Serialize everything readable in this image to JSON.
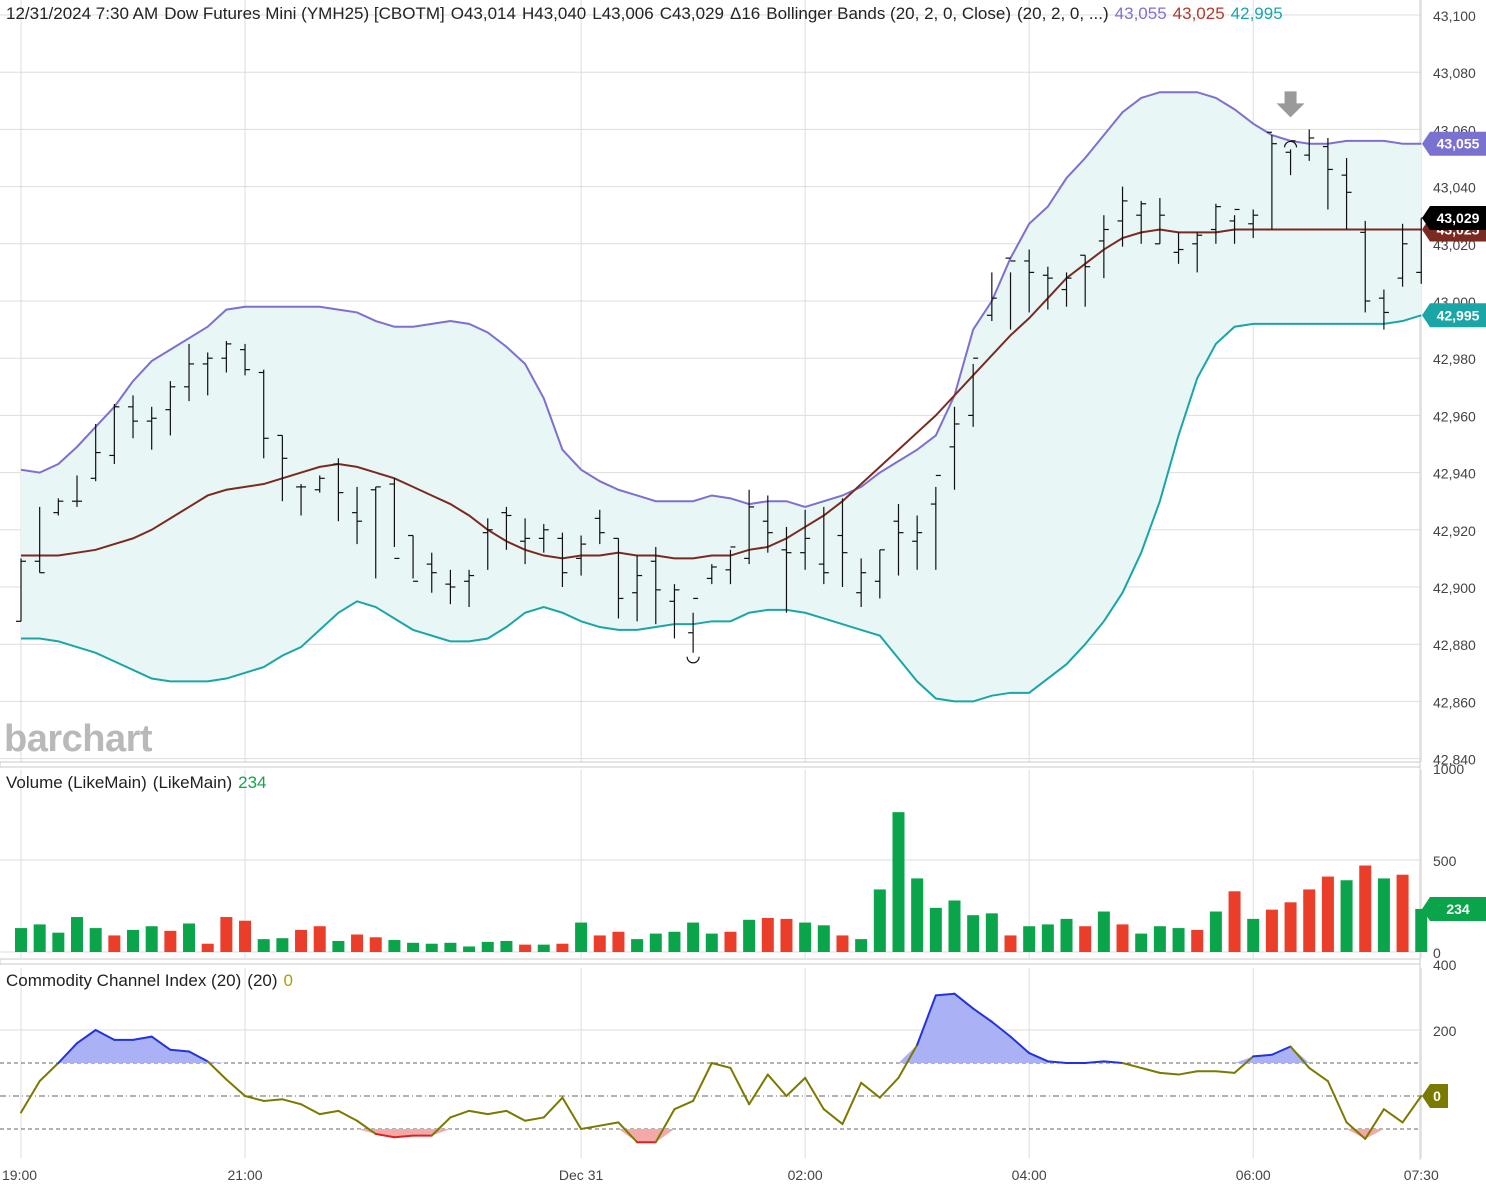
{
  "header": {
    "datetime": "12/31/2024 7:30 AM",
    "symbol": "Dow Futures Mini (YMH25) [CBOTM]",
    "open": "O43,014",
    "high": "H43,040",
    "low": "L43,006",
    "close": "C43,029",
    "change": "Δ16",
    "study": "Bollinger Bands (20, 2, 0, Close)",
    "study_params": "(20, 2, 0, ...)",
    "upper_value": "43,055",
    "middle_value": "43,025",
    "lower_value": "42,995"
  },
  "volume_header": {
    "label": "Volume (LikeMain)",
    "params": "(LikeMain)",
    "value": "234"
  },
  "cci_header": {
    "label": "Commodity Channel Index (20)",
    "params": "(20)",
    "value": "0"
  },
  "watermark": "barchart",
  "colors": {
    "upper": "#7b71d0",
    "middle": "#7a2a20",
    "lower": "#1aa6a6",
    "band_fill": "#e8f6f6",
    "vol_up": "#0aa54a",
    "vol_down": "#ea3e2a",
    "cci_line": "#7a7a00",
    "cci_pos": "#2233dd",
    "cci_neg": "#e02020",
    "last_price": "#000000",
    "cci_badge": "#7a7a00"
  },
  "chart_data": [
    {
      "type": "ohlc",
      "title": "Dow Futures Mini (YMH25) [CBOTM]",
      "y_ticks": [
        42840,
        42860,
        42880,
        42900,
        42920,
        42940,
        42960,
        42980,
        43000,
        43020,
        43040,
        43060,
        43080,
        43100
      ],
      "y_tick_labels": [
        "42,840",
        "42,860",
        "42,880",
        "42,900",
        "42,920",
        "42,940",
        "42,960",
        "42,980",
        "43,000",
        "43,020",
        "43,040",
        "43,060",
        "43,080",
        "43,100"
      ],
      "ylim": [
        42836,
        43105
      ],
      "x_ticks": [
        {
          "bar": 0,
          "label": "19:00"
        },
        {
          "bar": 12,
          "label": "21:00"
        },
        {
          "bar": 30,
          "label": "Dec 31"
        },
        {
          "bar": 42,
          "label": "02:00"
        },
        {
          "bar": 54,
          "label": "04:00"
        },
        {
          "bar": 66,
          "label": "06:00"
        },
        {
          "bar": 75,
          "label": "07:30"
        }
      ],
      "bars": [
        [
          42888,
          42910,
          42888,
          42909
        ],
        [
          42909,
          42928,
          42905,
          42905
        ],
        [
          42926,
          42931,
          42925,
          42930
        ],
        [
          42930,
          42939,
          42928,
          42930
        ],
        [
          42938,
          42957,
          42937,
          42947
        ],
        [
          42946,
          42964,
          42943,
          42963
        ],
        [
          42963,
          42967,
          42952,
          42958
        ],
        [
          42958,
          42963,
          42948,
          42959
        ],
        [
          42962,
          42972,
          42953,
          42970
        ],
        [
          42970,
          42985,
          42965,
          42978
        ],
        [
          42978,
          42982,
          42967,
          42980
        ],
        [
          42980,
          42986,
          42975,
          42985
        ],
        [
          42983,
          42985,
          42974,
          42976
        ],
        [
          42975,
          42976,
          42945,
          42952
        ],
        [
          42953,
          42953,
          42930,
          42945
        ],
        [
          42935,
          42936,
          42925,
          42935
        ],
        [
          42934,
          42939,
          42933,
          42938
        ],
        [
          42943,
          42945,
          42923,
          42933
        ],
        [
          42926,
          42935,
          42915,
          42923
        ],
        [
          42934,
          42935,
          42903,
          42935
        ],
        [
          42936,
          42938,
          42914,
          42910
        ],
        [
          42918,
          42918,
          42903,
          42902
        ],
        [
          42908,
          42912,
          42898,
          42905
        ],
        [
          42901,
          42906,
          42894,
          42900
        ],
        [
          42902,
          42906,
          42893,
          42904
        ],
        [
          42919,
          42924,
          42906,
          42920
        ],
        [
          42926,
          42928,
          42913,
          42925
        ],
        [
          42916,
          42924,
          42908,
          42917
        ],
        [
          42917,
          42922,
          42912,
          42920
        ],
        [
          42917,
          42919,
          42900,
          42905
        ],
        [
          42910,
          42918,
          42904,
          42915
        ],
        [
          42924,
          42927,
          42915,
          42919
        ],
        [
          42917,
          42917,
          42889,
          42896
        ],
        [
          42898,
          42911,
          42888,
          42904
        ],
        [
          42909,
          42914,
          42887,
          42899
        ],
        [
          42895,
          42901,
          42882,
          42899
        ],
        [
          42884,
          42891,
          42877,
          42896
        ],
        [
          42903,
          42908,
          42901,
          42907
        ],
        [
          42906,
          42913,
          42901,
          42914
        ],
        [
          42910,
          42934,
          42908,
          42928
        ],
        [
          42923,
          42932,
          42912,
          42919
        ],
        [
          42913,
          42921,
          42891,
          42912
        ],
        [
          42912,
          42927,
          42906,
          42917
        ],
        [
          42908,
          42928,
          42901,
          42905
        ],
        [
          42918,
          42931,
          42900,
          42912
        ],
        [
          42898,
          42910,
          42893,
          42905
        ],
        [
          42902,
          42913,
          42896,
          42913
        ],
        [
          42923,
          42929,
          42904,
          42919
        ],
        [
          42916,
          42925,
          42906,
          42919
        ],
        [
          42929,
          42935,
          42906,
          42939
        ],
        [
          42949,
          42963,
          42934,
          42957
        ],
        [
          42960,
          42978,
          42956,
          42980
        ],
        [
          42995,
          43010,
          42993,
          43001
        ],
        [
          43015,
          43010,
          42990,
          43014
        ],
        [
          43014,
          43018,
          42996,
          43010
        ],
        [
          43009,
          43012,
          42997,
          43008
        ],
        [
          43004,
          43010,
          42998,
          43008
        ],
        [
          43016,
          43016,
          42998,
          43012
        ],
        [
          43021,
          43030,
          43008,
          43025
        ],
        [
          43028,
          43040,
          43019,
          43035
        ],
        [
          43030,
          43035,
          43020,
          43034
        ],
        [
          43020,
          43036,
          43020,
          43030
        ],
        [
          43017,
          43024,
          43013,
          43018
        ],
        [
          43020,
          43024,
          43010,
          43023
        ],
        [
          43025,
          43034,
          43020,
          43033
        ],
        [
          43028,
          43030,
          43020,
          43032
        ],
        [
          43027,
          43032,
          43022,
          43030
        ],
        [
          43059,
          43058,
          43025,
          43055
        ],
        [
          43052,
          43053,
          43044,
          43056
        ],
        [
          43051,
          43060,
          43049,
          43057
        ],
        [
          43054,
          43057,
          43032,
          43046
        ],
        [
          43044,
          43050,
          43025,
          43038
        ],
        [
          43024,
          43028,
          42996,
          43000
        ],
        [
          43001,
          43004,
          42990,
          42996
        ],
        [
          43008,
          43027,
          43005,
          43020
        ],
        [
          43010,
          43029,
          43006,
          43029
        ]
      ],
      "bollinger_upper": [
        42941,
        42940,
        42943,
        42949,
        42956,
        42963,
        42972,
        42979,
        42983,
        42987,
        42991,
        42997,
        42998,
        42998,
        42998,
        42998,
        42998,
        42997,
        42996,
        42993,
        42991,
        42991,
        42992,
        42993,
        42992,
        42989,
        42984,
        42978,
        42966,
        42948,
        42941,
        42937,
        42934,
        42932,
        42930,
        42930,
        42930,
        42932,
        42931,
        42929,
        42930,
        42930,
        42928,
        42930,
        42932,
        42935,
        42940,
        42944,
        42948,
        42953,
        42967,
        42990,
        43000,
        43015,
        43027,
        43033,
        43043,
        43050,
        43058,
        43066,
        43071,
        43073,
        43073,
        43073,
        43071,
        43067,
        43062,
        43058,
        43056,
        43055,
        43055,
        43056,
        43056,
        43056,
        43055,
        43055
      ],
      "bollinger_middle": [
        42911,
        42911,
        42911,
        42912,
        42913,
        42915,
        42917,
        42920,
        42924,
        42928,
        42932,
        42934,
        42935,
        42936,
        42938,
        42940,
        42942,
        42943,
        42942,
        42940,
        42938,
        42935,
        42932,
        42929,
        42925,
        42920,
        42916,
        42913,
        42911,
        42910,
        42911,
        42911,
        42912,
        42911,
        42911,
        42910,
        42910,
        42911,
        42911,
        42913,
        42914,
        42917,
        42921,
        42925,
        42930,
        42936,
        42942,
        42948,
        42954,
        42960,
        42967,
        42974,
        42981,
        42988,
        42994,
        43001,
        43008,
        43013,
        43018,
        43022,
        43024,
        43025,
        43024,
        43024,
        43024,
        43025,
        43025,
        43025,
        43025,
        43025,
        43025,
        43025,
        43025,
        43025,
        43025,
        43025
      ],
      "bollinger_lower": [
        42882,
        42882,
        42881,
        42879,
        42877,
        42874,
        42871,
        42868,
        42867,
        42867,
        42867,
        42868,
        42870,
        42872,
        42876,
        42879,
        42885,
        42891,
        42895,
        42893,
        42889,
        42885,
        42883,
        42881,
        42881,
        42882,
        42886,
        42891,
        42893,
        42891,
        42888,
        42886,
        42885,
        42885,
        42886,
        42887,
        42887,
        42888,
        42888,
        42891,
        42892,
        42892,
        42891,
        42889,
        42887,
        42885,
        42883,
        42875,
        42867,
        42861,
        42860,
        42860,
        42862,
        42863,
        42863,
        42868,
        42873,
        42880,
        42888,
        42898,
        42912,
        42930,
        42953,
        42973,
        42985,
        42991,
        42992,
        42992,
        42992,
        42992,
        42992,
        42992,
        42992,
        42992,
        42993,
        42995
      ],
      "upper_value": "43,055",
      "middle_value": "43,025",
      "lower_value": "42,995",
      "last_price": "43,029",
      "markers": [
        {
          "bar": 68,
          "type": "high-arrow"
        },
        {
          "bar": 36,
          "type": "low-marker"
        }
      ]
    },
    {
      "type": "bar",
      "title": "Volume (LikeMain)",
      "y_ticks": [
        0,
        500,
        1000
      ],
      "y_tick_labels": [
        "0",
        "500",
        "1000"
      ],
      "ylim": [
        0,
        1000
      ],
      "values": [
        130,
        150,
        105,
        190,
        130,
        90,
        120,
        140,
        115,
        155,
        45,
        190,
        170,
        70,
        75,
        120,
        140,
        60,
        95,
        80,
        65,
        50,
        45,
        50,
        30,
        55,
        60,
        40,
        40,
        45,
        160,
        90,
        110,
        70,
        100,
        110,
        160,
        100,
        110,
        175,
        185,
        180,
        160,
        145,
        90,
        70,
        340,
        760,
        400,
        240,
        280,
        200,
        210,
        90,
        140,
        150,
        180,
        140,
        220,
        150,
        100,
        140,
        130,
        120,
        220,
        330,
        180,
        230,
        270,
        340,
        410,
        390,
        470,
        400,
        420,
        234
      ],
      "directions": [
        "u",
        "u",
        "u",
        "u",
        "u",
        "d",
        "u",
        "u",
        "d",
        "u",
        "d",
        "d",
        "d",
        "u",
        "u",
        "d",
        "d",
        "u",
        "d",
        "d",
        "u",
        "u",
        "u",
        "u",
        "u",
        "u",
        "u",
        "d",
        "u",
        "d",
        "u",
        "d",
        "d",
        "u",
        "u",
        "u",
        "u",
        "u",
        "d",
        "u",
        "d",
        "d",
        "u",
        "u",
        "d",
        "u",
        "u",
        "u",
        "u",
        "u",
        "u",
        "u",
        "u",
        "d",
        "u",
        "u",
        "u",
        "d",
        "u",
        "d",
        "u",
        "u",
        "u",
        "d",
        "u",
        "d",
        "u",
        "d",
        "d",
        "d",
        "d",
        "u",
        "d",
        "u",
        "d",
        "u"
      ],
      "last_value": "234"
    },
    {
      "type": "line",
      "title": "Commodity Channel Index (20)",
      "y_ticks": [
        200,
        400
      ],
      "y_tick_labels": [
        "200",
        "400"
      ],
      "reference_lines": [
        100,
        0,
        -100
      ],
      "ylim": [
        -180,
        400
      ],
      "values": [
        -50,
        45,
        100,
        160,
        200,
        170,
        170,
        180,
        140,
        135,
        105,
        50,
        0,
        -15,
        -10,
        -25,
        -55,
        -45,
        -75,
        -115,
        -125,
        -120,
        -120,
        -65,
        -45,
        -55,
        -45,
        -75,
        -65,
        -5,
        -100,
        -90,
        -80,
        -140,
        -140,
        -40,
        -15,
        100,
        85,
        -25,
        65,
        0,
        55,
        -40,
        -85,
        40,
        -5,
        55,
        155,
        305,
        310,
        265,
        225,
        180,
        130,
        105,
        100,
        100,
        105,
        100,
        85,
        70,
        65,
        75,
        75,
        70,
        120,
        125,
        150,
        85,
        45,
        -80,
        -130,
        -40,
        -80,
        0
      ],
      "last_value": "0"
    }
  ]
}
